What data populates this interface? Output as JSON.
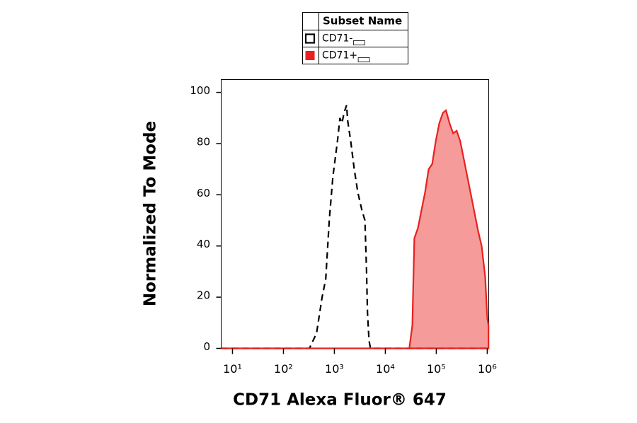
{
  "chart_data": {
    "type": "histogram-overlay",
    "legend_title": "Subset Name",
    "xlabel": "CD71 Alexa Fluor® 647",
    "ylabel": "Normalized To Mode",
    "xscale": "log",
    "xlim": [
      6,
      1070000
    ],
    "ylim": [
      0,
      105
    ],
    "xticks": [
      {
        "value": 10,
        "label": "10¹"
      },
      {
        "value": 100,
        "label": "10²"
      },
      {
        "value": 1000,
        "label": "10³"
      },
      {
        "value": 10000,
        "label": "10⁴"
      },
      {
        "value": 100000,
        "label": "10⁵"
      },
      {
        "value": 1000000,
        "label": "10⁶"
      }
    ],
    "yticks": [
      0,
      20,
      40,
      60,
      80,
      100
    ],
    "series": [
      {
        "name": "CD71-",
        "color": "#000000",
        "fill": false,
        "dashed": true,
        "x": [
          6,
          324,
          447,
          575,
          676,
          794,
          933,
          1148,
          1288,
          1413,
          1549,
          1738,
          1820,
          2089,
          2455,
          2884,
          3467,
          3981,
          4266,
          4467,
          4786,
          5129,
          1070000
        ],
        "values": [
          0,
          0,
          6,
          20,
          27,
          50,
          67,
          81,
          90,
          88,
          92,
          95,
          89,
          81,
          70,
          61,
          54,
          50,
          31,
          14,
          3,
          0,
          0
        ]
      },
      {
        "name": "CD71+",
        "color": "#e8211f",
        "fill": true,
        "dashed": false,
        "x": [
          6,
          29512,
          33884,
          37154,
          43652,
          51286,
          60256,
          70795,
          83176,
          97724,
          114815,
          134896,
          154882,
          181970,
          213796,
          251189,
          295121,
          346737,
          407380,
          478630,
          562341,
          660693,
          776247,
          912011,
          1000000,
          1060000
        ],
        "values": [
          0,
          0,
          9,
          43,
          47,
          54,
          61,
          70,
          72,
          81,
          88,
          92,
          93,
          88,
          84,
          85,
          81,
          74,
          67,
          60,
          53,
          46,
          40,
          28,
          12,
          9
        ]
      }
    ]
  }
}
